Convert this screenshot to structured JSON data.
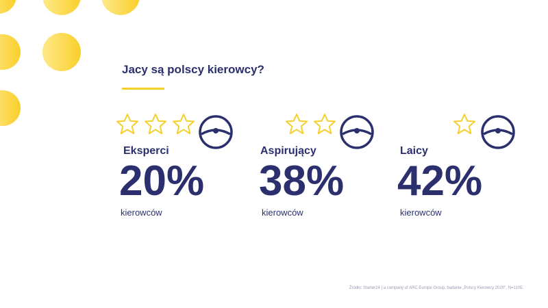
{
  "page": {
    "title": "Jacy są polscy kierowcy?",
    "source": "Źródło: Starter24 | a company of ARC Europe Group, badanie „Polscy Kierowcy 2020\", N=1105."
  },
  "colors": {
    "accent": "#f5cf2a",
    "primary": "#2b2f6e",
    "background": "#ffffff"
  },
  "groups": [
    {
      "label": "Eksperci",
      "value": "20%",
      "sub": "kierowców",
      "stars": 3
    },
    {
      "label": "Aspirujący",
      "value": "38%",
      "sub": "kierowców",
      "stars": 2
    },
    {
      "label": "Laicy",
      "value": "42%",
      "sub": "kierowców",
      "stars": 1
    }
  ]
}
